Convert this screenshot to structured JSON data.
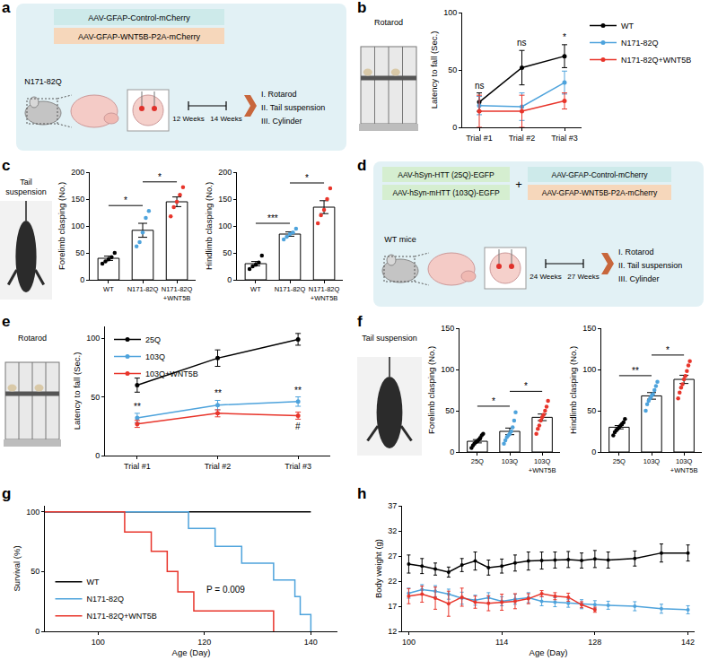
{
  "chart_data": [
    {
      "panel": "b",
      "type": "line",
      "categories": [
        "Trial #1",
        "Trial #2",
        "Trial #3"
      ],
      "y_label": "Latency to fall (Sec.)",
      "ylim": [
        0,
        100
      ],
      "yticks": [
        0,
        50,
        100
      ],
      "grid": false,
      "legend": "right",
      "marker": "circle",
      "series": [
        {
          "name": "WT",
          "color": "#000000",
          "values": [
            22,
            52,
            62
          ],
          "errors": [
            8,
            15,
            10
          ]
        },
        {
          "name": "N171-82Q",
          "color": "#4ea3dc",
          "values": [
            19,
            18,
            39
          ],
          "errors": [
            8,
            12,
            10
          ]
        },
        {
          "name": "N171-82Q+WNT5B",
          "color": "#e8352b",
          "values": [
            14,
            14,
            23
          ],
          "errors": [
            14,
            14,
            7
          ]
        }
      ],
      "annotations": [
        {
          "category": "Trial #1",
          "text": "ns"
        },
        {
          "category": "Trial #2",
          "text": "ns"
        },
        {
          "category": "Trial #3",
          "text": "*"
        }
      ]
    },
    {
      "panel": "c",
      "type": "bar",
      "categories": [
        "WT",
        "N171-82Q",
        "N171-82Q+WNT5B"
      ],
      "y_label": "Forelimb clasping (No.)",
      "ylim": [
        0,
        200
      ],
      "yticks": [
        0,
        50,
        100,
        150,
        200
      ],
      "grid": false,
      "values": [
        40,
        92,
        145
      ],
      "errors": [
        4,
        13,
        9
      ],
      "points": [
        [
          30,
          34,
          38,
          42,
          50
        ],
        [
          62,
          70,
          88,
          115,
          128
        ],
        [
          118,
          135,
          145,
          158,
          172
        ]
      ],
      "colors": [
        "#000000",
        "#4ea3dc",
        "#e8352b"
      ],
      "comparisons": [
        {
          "from": "WT",
          "to": "N171-82Q",
          "text": "*"
        },
        {
          "from": "N171-82Q",
          "to": "N171-82Q+WNT5B",
          "text": "*"
        }
      ]
    },
    {
      "type": "bar",
      "categories": [
        "WT",
        "N171-82Q",
        "N171-82Q+WNT5B"
      ],
      "y_label": "Hindlimb clasping (No.)",
      "ylim": [
        0,
        200
      ],
      "yticks": [
        0,
        50,
        100,
        150,
        200
      ],
      "grid": false,
      "values": [
        30,
        85,
        135
      ],
      "errors": [
        4,
        4,
        12
      ],
      "points": [
        [
          20,
          25,
          28,
          32,
          45
        ],
        [
          75,
          80,
          85,
          88,
          95
        ],
        [
          105,
          120,
          130,
          150,
          170
        ]
      ],
      "colors": [
        "#000000",
        "#4ea3dc",
        "#e8352b"
      ],
      "comparisons": [
        {
          "from": "WT",
          "to": "N171-82Q",
          "text": "***"
        },
        {
          "from": "N171-82Q",
          "to": "N171-82Q+WNT5B",
          "text": "*"
        }
      ]
    },
    {
      "panel": "e",
      "type": "line",
      "categories": [
        "Trial #1",
        "Trial #2",
        "Trial #3"
      ],
      "y_label": "Latency to fall (Sec.)",
      "ylim": [
        0,
        110
      ],
      "yticks": [
        0,
        50,
        100
      ],
      "grid": false,
      "legend": "top left",
      "marker": "circle",
      "series": [
        {
          "name": "25Q",
          "color": "#000000",
          "values": [
            60,
            83,
            99
          ],
          "errors": [
            6,
            7,
            5
          ]
        },
        {
          "name": "103Q",
          "color": "#4ea3dc",
          "values": [
            32,
            43,
            46
          ],
          "errors": [
            4,
            4,
            4
          ]
        },
        {
          "name": "103Q+WNT5B",
          "color": "#e8352b",
          "values": [
            27,
            36,
            34
          ],
          "errors": [
            3,
            3,
            3
          ]
        }
      ],
      "annotations": [
        {
          "category": "Trial #1",
          "series": "103Q",
          "text": "**"
        },
        {
          "category": "Trial #2",
          "series": "103Q",
          "text": "**"
        },
        {
          "category": "Trial #3",
          "series": "103Q",
          "text": "**"
        },
        {
          "category": "Trial #3",
          "series": "103Q+WNT5B",
          "text": "#"
        }
      ]
    },
    {
      "panel": "f",
      "type": "bar",
      "categories": [
        "25Q",
        "103Q",
        "103Q+WNT5B"
      ],
      "y_label": "Forelimb clasping (No.)",
      "ylim": [
        0,
        150
      ],
      "yticks": [
        0,
        50,
        100,
        150
      ],
      "grid": false,
      "values": [
        13,
        25,
        42
      ],
      "errors": [
        2,
        4,
        4
      ],
      "points": [
        [
          5,
          8,
          10,
          12,
          13,
          15,
          17,
          20,
          22
        ],
        [
          10,
          14,
          18,
          20,
          22,
          25,
          30,
          38,
          48
        ],
        [
          22,
          28,
          32,
          38,
          42,
          45,
          50,
          55,
          62
        ]
      ],
      "colors": [
        "#000000",
        "#4ea3dc",
        "#e8352b"
      ],
      "comparisons": [
        {
          "from": "25Q",
          "to": "103Q",
          "text": "*"
        },
        {
          "from": "103Q",
          "to": "103Q+WNT5B",
          "text": "*"
        }
      ]
    },
    {
      "type": "bar",
      "categories": [
        "25Q",
        "103Q",
        "103Q+WNT5B"
      ],
      "y_label": "Hindlimb clasping (No.)",
      "ylim": [
        0,
        150
      ],
      "yticks": [
        0,
        50,
        100,
        150
      ],
      "grid": false,
      "values": [
        30,
        68,
        88
      ],
      "errors": [
        2,
        4,
        5
      ],
      "points": [
        [
          20,
          24,
          26,
          28,
          30,
          32,
          34,
          36,
          40
        ],
        [
          50,
          58,
          62,
          65,
          68,
          70,
          75,
          80,
          85
        ],
        [
          65,
          72,
          78,
          82,
          88,
          92,
          98,
          105,
          110
        ]
      ],
      "colors": [
        "#000000",
        "#4ea3dc",
        "#e8352b"
      ],
      "comparisons": [
        {
          "from": "25Q",
          "to": "103Q",
          "text": "**"
        },
        {
          "from": "103Q",
          "to": "103Q+WNT5B",
          "text": "*"
        }
      ]
    },
    {
      "panel": "g",
      "type": "line",
      "line_style": "step",
      "x_label": "Age (Day)",
      "y_label": "Survival (%)",
      "xlim": [
        90,
        145
      ],
      "xticks": [
        100,
        120,
        140
      ],
      "ylim": [
        0,
        105
      ],
      "yticks": [
        0,
        50,
        100
      ],
      "grid": false,
      "legend": "bottom left",
      "series": [
        {
          "name": "WT",
          "color": "#000000",
          "x": [
            90,
            140
          ],
          "values": [
            100,
            100
          ]
        },
        {
          "name": "N171-82Q",
          "color": "#4ea3dc",
          "x": [
            90,
            117,
            122,
            127,
            133,
            137,
            138,
            140
          ],
          "values": [
            100,
            86,
            71,
            57,
            43,
            29,
            14,
            0
          ]
        },
        {
          "name": "N171-82Q+WNT5B",
          "color": "#e8352b",
          "x": [
            90,
            105,
            110,
            113,
            115,
            118,
            133
          ],
          "values": [
            100,
            83,
            67,
            50,
            33,
            17,
            0
          ]
        }
      ],
      "annotations": [
        {
          "x": 124,
          "y": 35,
          "text": "P = 0.009"
        }
      ]
    },
    {
      "panel": "h",
      "type": "line",
      "marker": "circle",
      "x_label": "Age (Day)",
      "y_label": "Body weight (g)",
      "xlim": [
        99,
        143
      ],
      "xticks": [
        100,
        114,
        128,
        142
      ],
      "ylim": [
        12,
        37
      ],
      "yticks": [
        12,
        17,
        22,
        27,
        32,
        37
      ],
      "grid": false,
      "x": [
        100,
        102,
        104,
        106,
        108,
        110,
        112,
        114,
        116,
        118,
        120,
        122,
        124,
        126,
        128,
        130,
        134,
        138,
        142
      ],
      "series": [
        {
          "name": "WT",
          "color": "#000000",
          "values": [
            25.4,
            25.0,
            24.4,
            23.8,
            25.2,
            26.0,
            24.7,
            25.0,
            25.6,
            26.0,
            26.1,
            26.2,
            26.3,
            26.1,
            26.4,
            26.2,
            26.5,
            27.6,
            27.6
          ],
          "errors": [
            1.8,
            1.5,
            1.2,
            1.0,
            1.3,
            1.8,
            1.5,
            1.4,
            1.6,
            1.8,
            1.7,
            1.6,
            1.6,
            1.5,
            1.7,
            1.6,
            1.5,
            1.8,
            1.6
          ]
        },
        {
          "name": "N171-82Q",
          "color": "#4ea3dc",
          "values": [
            19.6,
            20.3,
            20.0,
            19.4,
            18.6,
            18.2,
            18.7,
            18.0,
            18.4,
            18.7,
            18.0,
            17.8,
            17.6,
            17.4,
            17.3,
            17.2,
            17.0,
            16.5,
            16.3
          ],
          "errors": [
            1.0,
            1.0,
            1.1,
            1.0,
            1.2,
            1.0,
            1.0,
            0.9,
            1.0,
            1.0,
            0.9,
            0.9,
            0.8,
            0.9,
            0.8,
            0.8,
            0.9,
            0.9,
            0.8
          ]
        },
        {
          "name": "N171-82Q+WNT5B",
          "color": "#e8352b",
          "values": [
            19.0,
            19.4,
            18.6,
            17.5,
            18.8,
            17.8,
            17.6,
            17.8,
            18.0,
            18.5,
            19.5,
            19.0,
            18.8,
            17.3,
            16.3,
            null,
            null,
            null,
            null
          ],
          "errors": [
            1.5,
            1.6,
            2.2,
            2.5,
            1.8,
            1.2,
            1.5,
            1.6,
            1.5,
            1.0,
            0.6,
            0.7,
            0.8,
            0.6,
            0.5,
            null,
            null,
            null,
            null
          ]
        }
      ]
    }
  ],
  "diagrams": {
    "a": {
      "panel": "a",
      "vectors": [
        "AAV-GFAP-Control-mCherry",
        "AAV-GFAP-WNT5B-P2A-mCherry"
      ],
      "mouse": "N171-82Q",
      "timeline": [
        "12 Weeks",
        "14 Weeks"
      ],
      "tests": [
        "I. Rotarod",
        "II. Tail suspension",
        "III. Cylinder"
      ]
    },
    "d": {
      "panel": "d",
      "neuron_vectors": [
        "AAV-hSyn-HTT (25Q)-EGFP",
        "AAV-hSyn-mHTT (103Q)-EGFP"
      ],
      "plus": "+",
      "vectors": [
        "AAV-GFAP-Control-mCherry",
        "AAV-GFAP-WNT5B-P2A-mCherry"
      ],
      "mouse": "WT mice",
      "timeline": [
        "24 Weeks",
        "27 Weeks"
      ],
      "tests": [
        "I. Rotarod",
        "II. Tail suspension",
        "III. Cylinder"
      ]
    }
  },
  "images": {
    "b": "Rotarod",
    "c": "Tail suspension",
    "e": "Rotarod",
    "f": "Tail suspension"
  }
}
